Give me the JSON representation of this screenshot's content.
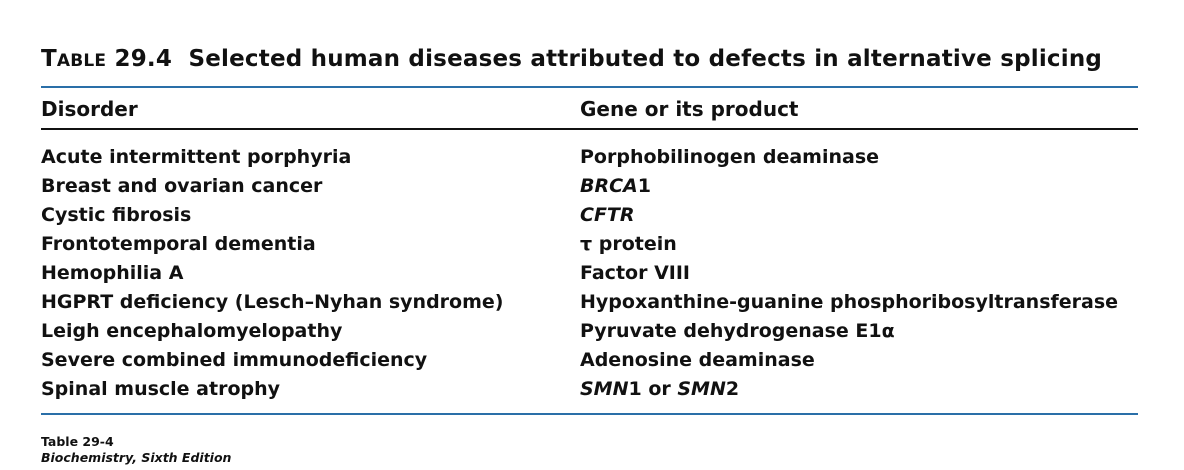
{
  "title": {
    "label_prefix": "T",
    "label_rest": "ABLE",
    "number": "29.4",
    "text": "Selected human diseases attributed to defects in alternative splicing"
  },
  "columns": [
    "Disorder",
    "Gene or its product"
  ],
  "rows": [
    {
      "disorder": "Acute intermittent porphyria",
      "gene": [
        "Porphobilinogen deaminase"
      ]
    },
    {
      "disorder": "Breast and ovarian cancer",
      "gene": [
        "BRCA",
        "1"
      ]
    },
    {
      "disorder": "Cystic fibrosis",
      "gene": [
        "CFTR"
      ]
    },
    {
      "disorder": "Frontotemporal dementia",
      "gene": [
        "τ protein"
      ]
    },
    {
      "disorder": "Hemophilia A",
      "gene": [
        "Factor VIII"
      ]
    },
    {
      "disorder": "HGPRT deficiency (Lesch–Nyhan syndrome)",
      "gene": [
        "Hypoxanthine-guanine phosphoribosyltransferase"
      ]
    },
    {
      "disorder": "Leigh encephalomyelopathy",
      "gene": [
        "Pyruvate dehydrogenase E1α"
      ]
    },
    {
      "disorder": "Severe combined immunodeficiency",
      "gene": [
        "Adenosine deaminase"
      ]
    },
    {
      "disorder": "Spinal muscle atrophy",
      "gene": [
        "SMN",
        "1 or ",
        "SMN",
        "2"
      ]
    }
  ],
  "footnote": {
    "label": "Table 29-4",
    "source": "Biochemistry, Sixth Edition"
  },
  "colors": {
    "rule_accent": "#2a6fa8",
    "text": "#111111"
  }
}
